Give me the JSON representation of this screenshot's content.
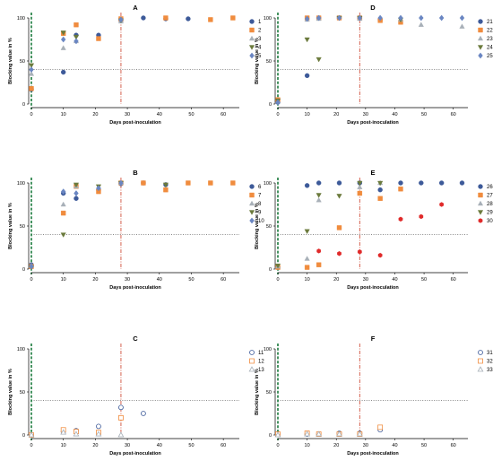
{
  "colors": {
    "series_1": "#3d5a99",
    "series_2": "#f08c3e",
    "series_3": "#a8b0b8",
    "series_4": "#6b7a3c",
    "series_5": "#6a86c2",
    "series_30": "#e02a2a",
    "threshold": "#777777",
    "inoculation_line": "#1a7a3c",
    "day28_line": "#d0503c"
  },
  "chart_data": [
    {
      "type": "scatter",
      "title": "A",
      "xlabel": "Days post-inoculation",
      "ylabel": "Blocking value in %",
      "xlim": [
        0,
        65
      ],
      "ylim": [
        0,
        100
      ],
      "x_ticks": [
        0,
        10,
        20,
        30,
        40,
        50,
        60
      ],
      "y_ticks": [
        0,
        50,
        100
      ],
      "threshold": 40,
      "vlines": [
        0,
        28
      ],
      "series": [
        {
          "name": "1",
          "marker": "circle",
          "filled": true,
          "points": [
            [
              0,
              17
            ],
            [
              10,
              37
            ],
            [
              14,
              80
            ],
            [
              21,
              80
            ],
            [
              28,
              97
            ],
            [
              35,
              100
            ],
            [
              42,
              99
            ],
            [
              49,
              99
            ]
          ]
        },
        {
          "name": "2",
          "marker": "square",
          "filled": true,
          "points": [
            [
              0,
              18
            ],
            [
              10,
              82
            ],
            [
              14,
              92
            ],
            [
              21,
              76
            ],
            [
              28,
              99
            ],
            [
              42,
              100
            ],
            [
              56,
              98
            ],
            [
              63,
              100
            ]
          ]
        },
        {
          "name": "3",
          "marker": "triangle-up",
          "filled": true,
          "points": [
            [
              0,
              35
            ],
            [
              10,
              65
            ],
            [
              14,
              73
            ],
            [
              28,
              96
            ]
          ]
        },
        {
          "name": "4",
          "marker": "triangle-down",
          "filled": true,
          "points": [
            [
              0,
              45
            ],
            [
              10,
              83
            ],
            [
              14,
              78
            ],
            [
              28,
              97
            ]
          ]
        },
        {
          "name": "5",
          "marker": "diamond",
          "filled": true,
          "points": [
            [
              0,
              40
            ],
            [
              10,
              75
            ],
            [
              14,
              73
            ],
            [
              28,
              98
            ]
          ]
        }
      ]
    },
    {
      "type": "scatter",
      "title": "B",
      "xlabel": "Days post-inoculation",
      "ylabel": "Blocking value in %",
      "xlim": [
        0,
        65
      ],
      "ylim": [
        0,
        100
      ],
      "x_ticks": [
        0,
        10,
        20,
        30,
        40,
        50,
        60
      ],
      "y_ticks": [
        0,
        50,
        100
      ],
      "threshold": 40,
      "vlines": [
        0,
        28
      ],
      "series": [
        {
          "name": "6",
          "marker": "circle",
          "filled": true,
          "points": [
            [
              0,
              5
            ],
            [
              10,
              88
            ],
            [
              14,
              82
            ],
            [
              21,
              92
            ],
            [
              28,
              99
            ],
            [
              35,
              100
            ],
            [
              42,
              98
            ]
          ]
        },
        {
          "name": "7",
          "marker": "square",
          "filled": true,
          "points": [
            [
              0,
              3
            ],
            [
              10,
              65
            ],
            [
              14,
              96
            ],
            [
              21,
              90
            ],
            [
              28,
              100
            ],
            [
              35,
              100
            ],
            [
              42,
              92
            ],
            [
              49,
              100
            ],
            [
              56,
              100
            ],
            [
              63,
              100
            ]
          ]
        },
        {
          "name": "8",
          "marker": "triangle-up",
          "filled": true,
          "points": [
            [
              0,
              4
            ],
            [
              10,
              75
            ],
            [
              14,
              96
            ],
            [
              21,
              95
            ],
            [
              28,
              100
            ]
          ]
        },
        {
          "name": "9",
          "marker": "triangle-down",
          "filled": true,
          "points": [
            [
              0,
              2
            ],
            [
              10,
              40
            ],
            [
              14,
              98
            ],
            [
              21,
              96
            ],
            [
              28,
              100
            ],
            [
              42,
              98
            ]
          ]
        },
        {
          "name": "10",
          "marker": "diamond",
          "filled": true,
          "points": [
            [
              0,
              3
            ],
            [
              10,
              90
            ],
            [
              14,
              88
            ],
            [
              21,
              94
            ],
            [
              28,
              100
            ]
          ]
        }
      ]
    },
    {
      "type": "scatter",
      "title": "C",
      "xlabel": "Days post-inoculation",
      "ylabel": "Blocking value in %",
      "xlim": [
        0,
        65
      ],
      "ylim": [
        0,
        100
      ],
      "x_ticks": [
        0,
        10,
        20,
        30,
        40,
        50,
        60
      ],
      "y_ticks": [
        0,
        50,
        100
      ],
      "threshold": 40,
      "vlines": [
        0,
        28
      ],
      "series": [
        {
          "name": "11",
          "marker": "circle",
          "filled": false,
          "points": [
            [
              0,
              0
            ],
            [
              10,
              4
            ],
            [
              14,
              5
            ],
            [
              21,
              10
            ],
            [
              28,
              32
            ],
            [
              35,
              25
            ]
          ]
        },
        {
          "name": "12",
          "marker": "square",
          "filled": false,
          "points": [
            [
              0,
              0
            ],
            [
              10,
              6
            ],
            [
              14,
              4
            ],
            [
              21,
              3
            ],
            [
              28,
              20
            ]
          ]
        },
        {
          "name": "13",
          "marker": "triangle-up",
          "filled": false,
          "points": [
            [
              0,
              0
            ],
            [
              10,
              3
            ],
            [
              14,
              1
            ],
            [
              21,
              1
            ],
            [
              28,
              0
            ]
          ]
        }
      ]
    },
    {
      "type": "scatter",
      "title": "D",
      "xlabel": "Days post-inoculation",
      "ylabel": "Blocking value in %",
      "xlim": [
        0,
        65
      ],
      "ylim": [
        0,
        100
      ],
      "x_ticks": [
        0,
        10,
        20,
        30,
        40,
        50,
        60
      ],
      "y_ticks": [
        0,
        50,
        100
      ],
      "threshold": 40,
      "vlines": [
        0,
        28
      ],
      "series": [
        {
          "name": "21",
          "marker": "circle",
          "filled": true,
          "points": [
            [
              0,
              2
            ],
            [
              10,
              33
            ],
            [
              14,
              100
            ],
            [
              21,
              100
            ],
            [
              28,
              100
            ],
            [
              35,
              98
            ]
          ]
        },
        {
          "name": "22",
          "marker": "square",
          "filled": true,
          "points": [
            [
              0,
              5
            ],
            [
              10,
              100
            ],
            [
              14,
              100
            ],
            [
              21,
              100
            ],
            [
              28,
              100
            ],
            [
              35,
              97
            ],
            [
              42,
              95
            ]
          ]
        },
        {
          "name": "23",
          "marker": "triangle-up",
          "filled": true,
          "points": [
            [
              0,
              3
            ],
            [
              10,
              98
            ],
            [
              14,
              99
            ],
            [
              28,
              99
            ],
            [
              42,
              98
            ],
            [
              49,
              92
            ],
            [
              63,
              90
            ]
          ]
        },
        {
          "name": "24",
          "marker": "triangle-down",
          "filled": true,
          "points": [
            [
              0,
              4
            ],
            [
              10,
              75
            ],
            [
              14,
              52
            ],
            [
              21,
              100
            ],
            [
              28,
              100
            ],
            [
              42,
              98
            ]
          ]
        },
        {
          "name": "25",
          "marker": "diamond",
          "filled": true,
          "points": [
            [
              0,
              2
            ],
            [
              10,
              99
            ],
            [
              14,
              100
            ],
            [
              21,
              100
            ],
            [
              28,
              100
            ],
            [
              35,
              100
            ],
            [
              42,
              100
            ],
            [
              49,
              100
            ],
            [
              56,
              100
            ],
            [
              63,
              100
            ]
          ]
        }
      ]
    },
    {
      "type": "scatter",
      "title": "E",
      "xlabel": "Days post-inoculation",
      "ylabel": "Blocking value in %",
      "xlim": [
        0,
        65
      ],
      "ylim": [
        0,
        100
      ],
      "x_ticks": [
        0,
        10,
        20,
        30,
        40,
        50,
        60
      ],
      "y_ticks": [
        0,
        50,
        100
      ],
      "threshold": 40,
      "vlines": [
        0,
        28
      ],
      "series": [
        {
          "name": "26",
          "marker": "circle",
          "filled": true,
          "points": [
            [
              0,
              2
            ],
            [
              10,
              97
            ],
            [
              14,
              100
            ],
            [
              21,
              100
            ],
            [
              28,
              100
            ],
            [
              35,
              92
            ],
            [
              42,
              100
            ],
            [
              49,
              100
            ],
            [
              56,
              100
            ],
            [
              63,
              100
            ]
          ]
        },
        {
          "name": "27",
          "marker": "square",
          "filled": true,
          "points": [
            [
              0,
              2
            ],
            [
              10,
              2
            ],
            [
              14,
              5
            ],
            [
              21,
              48
            ],
            [
              28,
              88
            ],
            [
              35,
              82
            ],
            [
              42,
              93
            ]
          ]
        },
        {
          "name": "28",
          "marker": "triangle-up",
          "filled": true,
          "points": [
            [
              0,
              3
            ],
            [
              10,
              12
            ],
            [
              14,
              80
            ],
            [
              28,
              95
            ],
            [
              35,
              100
            ]
          ]
        },
        {
          "name": "29",
          "marker": "triangle-down",
          "filled": true,
          "points": [
            [
              0,
              4
            ],
            [
              10,
              44
            ],
            [
              14,
              86
            ],
            [
              21,
              85
            ],
            [
              28,
              100
            ],
            [
              35,
              100
            ]
          ]
        },
        {
          "name": "30",
          "marker": "hexagon",
          "filled": true,
          "color": "series_30",
          "points": [
            [
              14,
              21
            ],
            [
              21,
              18
            ],
            [
              28,
              20
            ],
            [
              35,
              16
            ],
            [
              42,
              58
            ],
            [
              49,
              61
            ],
            [
              56,
              75
            ]
          ]
        }
      ]
    },
    {
      "type": "scatter",
      "title": "F",
      "xlabel": "Days post-inoculation",
      "ylabel": "Blocking value in %",
      "xlim": [
        0,
        65
      ],
      "ylim": [
        0,
        100
      ],
      "x_ticks": [
        0,
        10,
        20,
        30,
        40,
        50,
        60
      ],
      "y_ticks": [
        0,
        50,
        100
      ],
      "threshold": 40,
      "vlines": [
        0,
        28
      ],
      "series": [
        {
          "name": "31",
          "marker": "circle",
          "filled": false,
          "points": [
            [
              0,
              1
            ],
            [
              10,
              1
            ],
            [
              14,
              1
            ],
            [
              21,
              2
            ],
            [
              28,
              2
            ],
            [
              35,
              6
            ]
          ]
        },
        {
          "name": "32",
          "marker": "square",
          "filled": false,
          "points": [
            [
              0,
              1
            ],
            [
              10,
              2
            ],
            [
              14,
              1
            ],
            [
              21,
              1
            ],
            [
              28,
              1
            ],
            [
              35,
              9
            ]
          ]
        },
        {
          "name": "33",
          "marker": "triangle-up",
          "filled": false,
          "points": [
            [
              0,
              0
            ],
            [
              10,
              1
            ],
            [
              14,
              1
            ],
            [
              21,
              1
            ],
            [
              28,
              1
            ]
          ]
        }
      ]
    }
  ]
}
